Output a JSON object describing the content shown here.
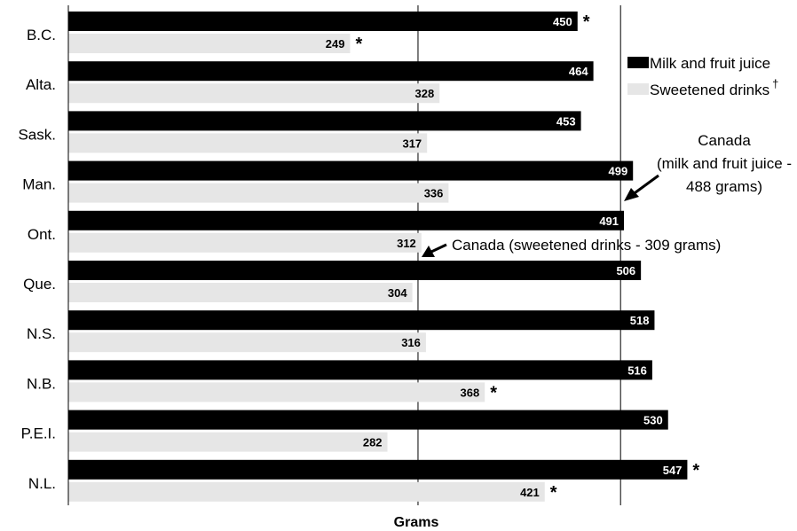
{
  "chart_data": {
    "type": "bar",
    "orientation": "horizontal",
    "xlabel": "Grams",
    "categories": [
      "B.C.",
      "Alta.",
      "Sask.",
      "Man.",
      "Ont.",
      "Que.",
      "N.S.",
      "N.B.",
      "P.E.I.",
      "N.L."
    ],
    "series": [
      {
        "name": "Milk and fruit juice",
        "color": "#000000",
        "values": [
          450,
          464,
          453,
          499,
          491,
          506,
          518,
          516,
          530,
          547
        ],
        "significant": [
          true,
          false,
          false,
          false,
          false,
          false,
          false,
          false,
          false,
          true
        ]
      },
      {
        "name": "Sweetened drinks",
        "name_suffix": "†",
        "color": "#e6e6e6",
        "values": [
          249,
          328,
          317,
          336,
          312,
          304,
          316,
          368,
          282,
          421
        ],
        "significant": [
          true,
          false,
          false,
          false,
          false,
          false,
          false,
          true,
          false,
          true
        ]
      }
    ],
    "significance_marker": "*",
    "reference_lines": [
      {
        "value": 309,
        "label": "Canada (sweetened drinks - 309 grams)"
      },
      {
        "value": 488,
        "label_lines": [
          "Canada",
          "(milk and fruit juice -",
          "488 grams)"
        ]
      }
    ],
    "legend_position": "top-right",
    "grid": false
  }
}
